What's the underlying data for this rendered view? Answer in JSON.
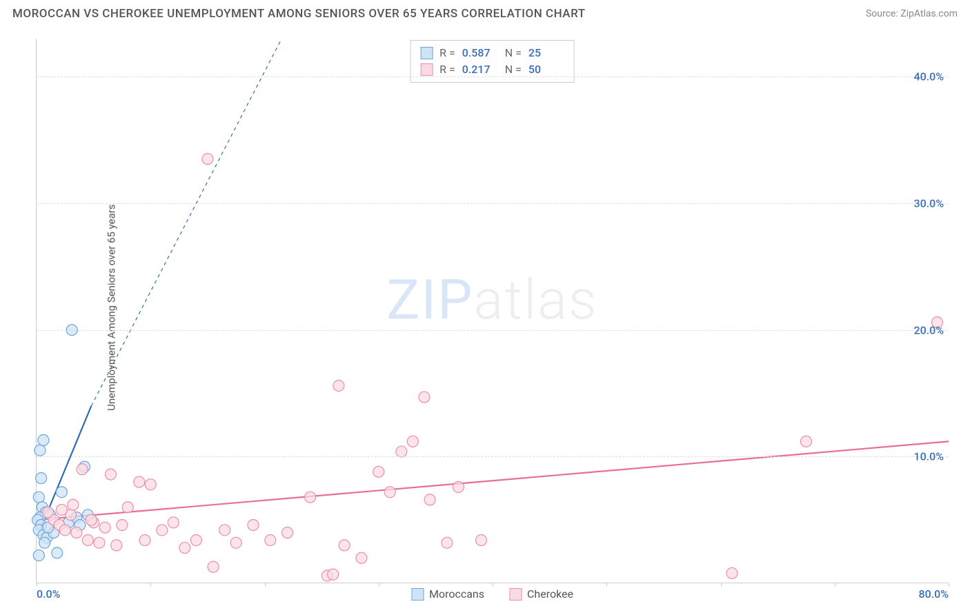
{
  "header": {
    "title": "MOROCCAN VS CHEROKEE UNEMPLOYMENT AMONG SENIORS OVER 65 YEARS CORRELATION CHART",
    "source_label": "Source: ZipAtlas.com"
  },
  "chart": {
    "type": "scatter",
    "ylabel": "Unemployment Among Seniors over 65 years",
    "background_color": "#ffffff",
    "grid_color": "#dddddd",
    "axis_color": "#cccccc",
    "xlim": [
      0,
      80
    ],
    "ylim": [
      0,
      43
    ],
    "x_ticks": [
      0,
      10,
      20,
      30,
      40,
      50,
      60,
      70,
      80
    ],
    "x_tick_labels_shown": {
      "0": "0.0%",
      "80": "80.0%"
    },
    "x_tick_color": "#3a6fb7",
    "y_grid": [
      10,
      20,
      30,
      40
    ],
    "y_tick_labels": {
      "10": "10.0%",
      "20": "20.0%",
      "30": "30.0%",
      "40": "40.0%"
    },
    "y_tick_color": "#3a6fb7",
    "marker_radius": 8,
    "marker_stroke_width": 1.2,
    "series": [
      {
        "name": "Moroccans",
        "fill": "#cfe3f7",
        "stroke": "#6fa3d9",
        "R": "0.587",
        "N": "25",
        "trend": {
          "x1": 0.3,
          "y1": 4.2,
          "x2": 4.8,
          "y2": 14.0,
          "color": "#2f6db3",
          "width": 2.2,
          "dash": "none",
          "ext_x2": 21.5,
          "ext_y2": 43.0,
          "ext_dash": "5,5"
        },
        "points": [
          {
            "x": 0.3,
            "y": 10.5
          },
          {
            "x": 0.6,
            "y": 11.3
          },
          {
            "x": 0.4,
            "y": 8.3
          },
          {
            "x": 0.2,
            "y": 6.8
          },
          {
            "x": 0.5,
            "y": 6.0
          },
          {
            "x": 0.8,
            "y": 5.6
          },
          {
            "x": 0.3,
            "y": 5.2
          },
          {
            "x": 0.1,
            "y": 5.0
          },
          {
            "x": 0.4,
            "y": 4.6
          },
          {
            "x": 0.2,
            "y": 4.2
          },
          {
            "x": 0.6,
            "y": 3.8
          },
          {
            "x": 0.9,
            "y": 3.6
          },
          {
            "x": 1.2,
            "y": 5.4
          },
          {
            "x": 1.5,
            "y": 4.0
          },
          {
            "x": 0.2,
            "y": 2.2
          },
          {
            "x": 1.8,
            "y": 2.4
          },
          {
            "x": 2.2,
            "y": 7.2
          },
          {
            "x": 2.8,
            "y": 4.8
          },
          {
            "x": 3.1,
            "y": 20.0
          },
          {
            "x": 3.5,
            "y": 5.2
          },
          {
            "x": 3.8,
            "y": 4.6
          },
          {
            "x": 4.2,
            "y": 9.2
          },
          {
            "x": 4.5,
            "y": 5.4
          },
          {
            "x": 1.0,
            "y": 4.4
          },
          {
            "x": 0.7,
            "y": 3.2
          }
        ]
      },
      {
        "name": "Cherokee",
        "fill": "#fbdbe3",
        "stroke": "#e98fa6",
        "R": "0.217",
        "N": "50",
        "trend": {
          "x1": 0,
          "y1": 5.0,
          "x2": 80,
          "y2": 11.2,
          "color": "#e86f93",
          "width": 2.2,
          "dash": "none"
        },
        "points": [
          {
            "x": 1.5,
            "y": 5.0
          },
          {
            "x": 2.0,
            "y": 4.6
          },
          {
            "x": 2.5,
            "y": 4.2
          },
          {
            "x": 3.0,
            "y": 5.4
          },
          {
            "x": 3.5,
            "y": 4.0
          },
          {
            "x": 4.0,
            "y": 9.0
          },
          {
            "x": 4.5,
            "y": 3.4
          },
          {
            "x": 5.0,
            "y": 4.8
          },
          {
            "x": 5.5,
            "y": 3.2
          },
          {
            "x": 6.0,
            "y": 4.4
          },
          {
            "x": 6.5,
            "y": 8.6
          },
          {
            "x": 7.0,
            "y": 3.0
          },
          {
            "x": 7.5,
            "y": 4.6
          },
          {
            "x": 8.0,
            "y": 6.0
          },
          {
            "x": 9.0,
            "y": 8.0
          },
          {
            "x": 9.5,
            "y": 3.4
          },
          {
            "x": 10.0,
            "y": 7.8
          },
          {
            "x": 11.0,
            "y": 4.2
          },
          {
            "x": 12.0,
            "y": 4.8
          },
          {
            "x": 13.0,
            "y": 2.8
          },
          {
            "x": 14.0,
            "y": 3.4
          },
          {
            "x": 15.0,
            "y": 33.5
          },
          {
            "x": 15.5,
            "y": 1.3
          },
          {
            "x": 16.5,
            "y": 4.2
          },
          {
            "x": 17.5,
            "y": 3.2
          },
          {
            "x": 19.0,
            "y": 4.6
          },
          {
            "x": 20.5,
            "y": 3.4
          },
          {
            "x": 22.0,
            "y": 4.0
          },
          {
            "x": 24.0,
            "y": 6.8
          },
          {
            "x": 25.5,
            "y": 0.6
          },
          {
            "x": 26.0,
            "y": 0.7
          },
          {
            "x": 26.5,
            "y": 15.6
          },
          {
            "x": 27.0,
            "y": 3.0
          },
          {
            "x": 28.5,
            "y": 2.0
          },
          {
            "x": 30.0,
            "y": 8.8
          },
          {
            "x": 31.0,
            "y": 7.2
          },
          {
            "x": 32.0,
            "y": 10.4
          },
          {
            "x": 33.0,
            "y": 11.2
          },
          {
            "x": 34.0,
            "y": 14.7
          },
          {
            "x": 34.5,
            "y": 6.6
          },
          {
            "x": 36.0,
            "y": 3.2
          },
          {
            "x": 37.0,
            "y": 7.6
          },
          {
            "x": 39.0,
            "y": 3.4
          },
          {
            "x": 61.0,
            "y": 0.8
          },
          {
            "x": 67.5,
            "y": 11.2
          },
          {
            "x": 79.0,
            "y": 20.6
          },
          {
            "x": 1.0,
            "y": 5.6
          },
          {
            "x": 2.2,
            "y": 5.8
          },
          {
            "x": 3.2,
            "y": 6.2
          },
          {
            "x": 4.8,
            "y": 5.0
          }
        ]
      }
    ],
    "legend": [
      {
        "label": "Moroccans",
        "fill": "#cfe3f7",
        "stroke": "#6fa3d9"
      },
      {
        "label": "Cherokee",
        "fill": "#fbdbe3",
        "stroke": "#e98fa6"
      }
    ],
    "watermark": {
      "part1": "ZIP",
      "part2": "atlas"
    }
  }
}
